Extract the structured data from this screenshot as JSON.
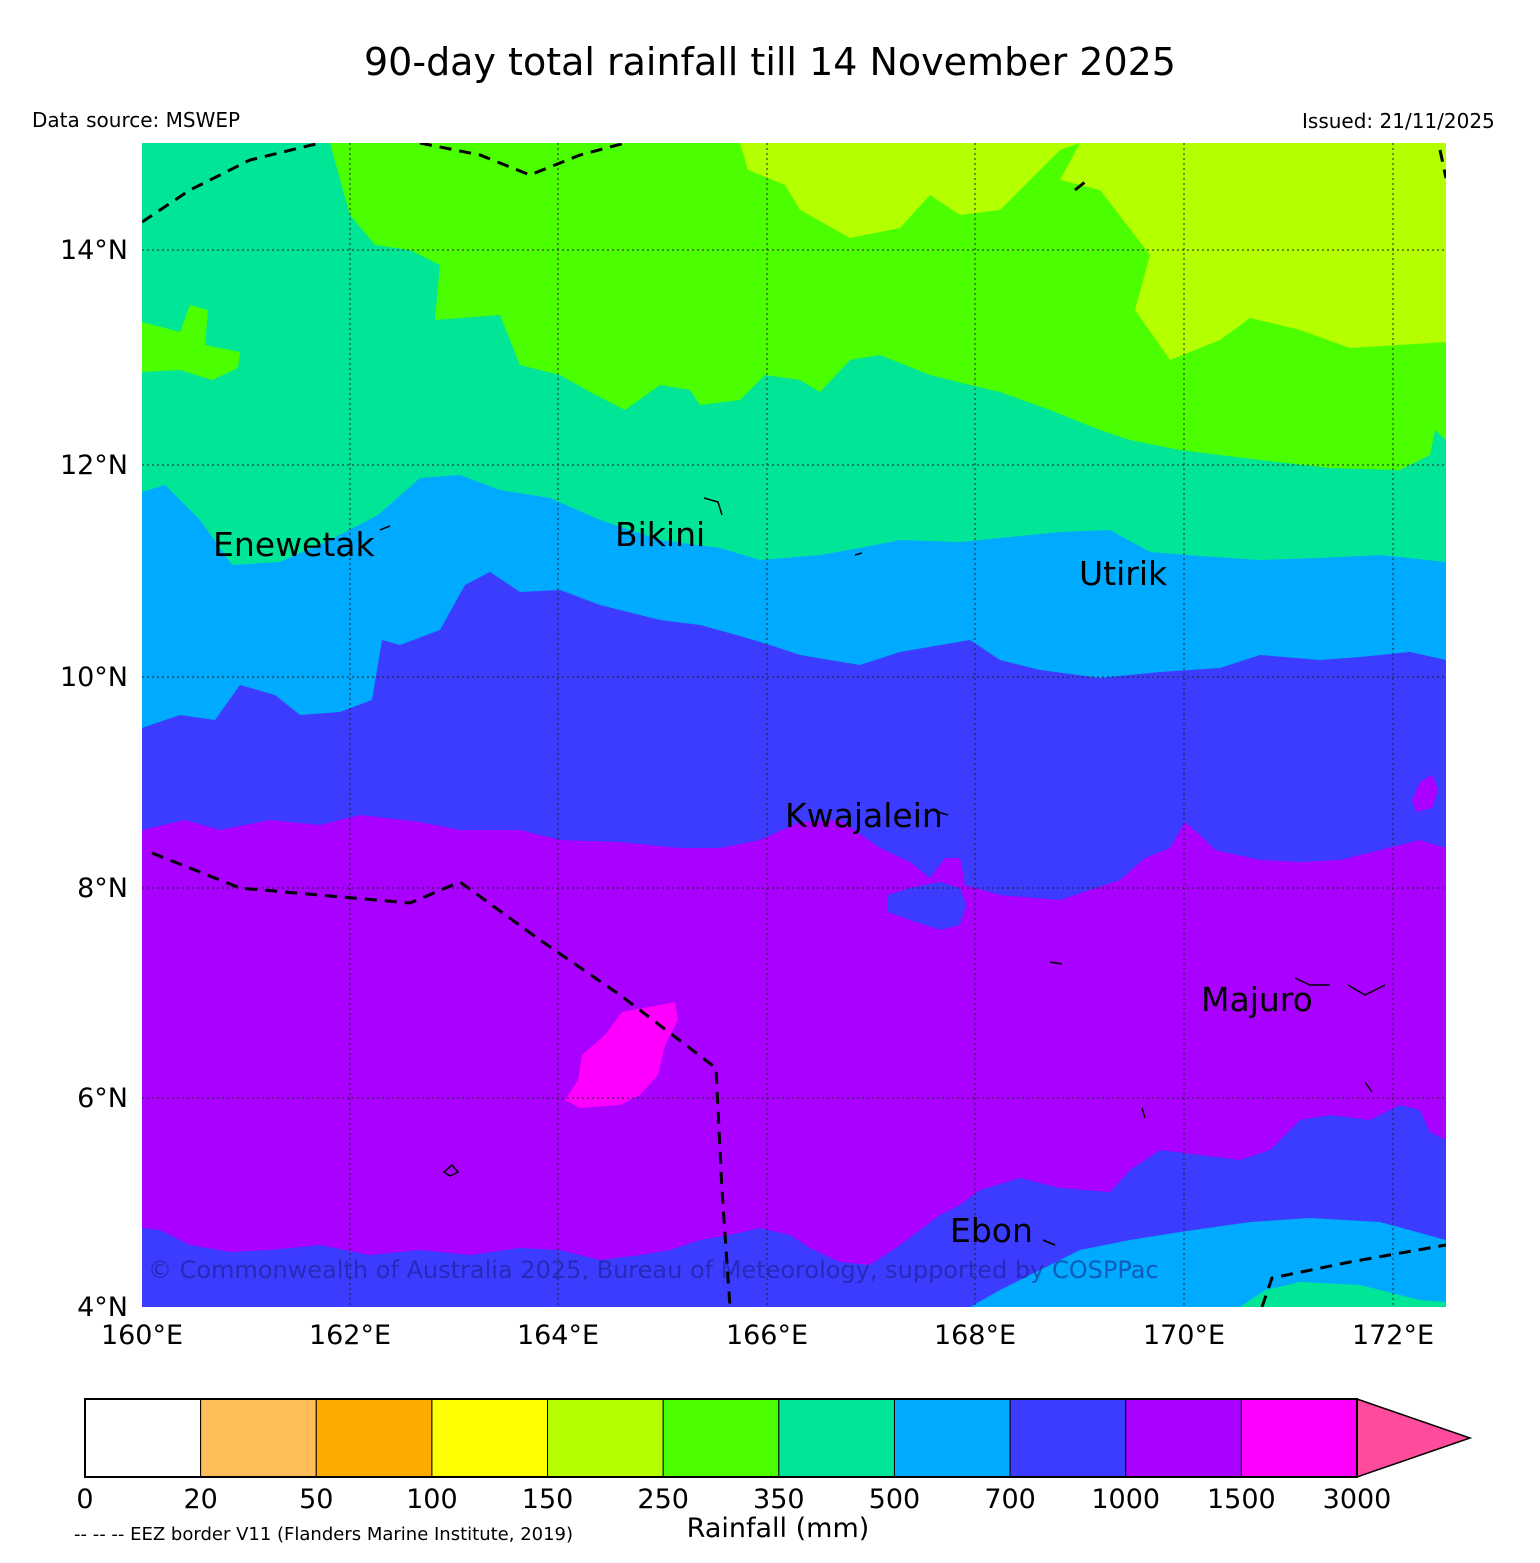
{
  "title": "90-day total rainfall till 14 November 2025",
  "data_source": "Data source: MSWEP",
  "issued": "Issued: 21/11/2025",
  "copyright": "© Commonwealth of Australia 2025, Bureau of Meteorology, supported by COSPPac",
  "map": {
    "lon_range": [
      160,
      172.5
    ],
    "lat_range": [
      4,
      15
    ],
    "lon_ticks": [
      {
        "value": 160,
        "label": "160°E"
      },
      {
        "value": 162,
        "label": "162°E"
      },
      {
        "value": 164,
        "label": "164°E"
      },
      {
        "value": 166,
        "label": "166°E"
      },
      {
        "value": 168,
        "label": "168°E"
      },
      {
        "value": 170,
        "label": "170°E"
      },
      {
        "value": 172,
        "label": "172°E"
      }
    ],
    "lat_ticks": [
      {
        "value": 4,
        "label": "4°N"
      },
      {
        "value": 6,
        "label": "6°N"
      },
      {
        "value": 8,
        "label": "8°N"
      },
      {
        "value": 10,
        "label": "10°N"
      },
      {
        "value": 12,
        "label": "12°N"
      },
      {
        "value": 14,
        "label": "14°N"
      }
    ],
    "places": [
      {
        "name": "Enewetak",
        "lon": 162.2,
        "lat": 11.35
      },
      {
        "name": "Bikini",
        "lon": 165.4,
        "lat": 11.55
      },
      {
        "name": "Utirik",
        "lon": 169.5,
        "lat": 11.2
      },
      {
        "name": "Kwajalein",
        "lon": 167.5,
        "lat": 8.7
      },
      {
        "name": "Majuro",
        "lon": 171.2,
        "lat": 7.1
      },
      {
        "name": "Ebon",
        "lon": 168.6,
        "lat": 4.6
      }
    ]
  },
  "legend": {
    "title": "Rainfall (mm)",
    "ticks": [
      "0",
      "20",
      "50",
      "100",
      "150",
      "250",
      "350",
      "500",
      "700",
      "1000",
      "1500",
      "3000"
    ],
    "colors": [
      "#ffffff",
      "#ffbe5a",
      "#ffaa00",
      "#ffff00",
      "#b4ff00",
      "#4bff00",
      "#00e696",
      "#00aaff",
      "#3c3cff",
      "#aa00ff",
      "#ff00ff"
    ],
    "extend_color": "#ff4b9b",
    "eez_note": "-- -- -- EEZ border V11 (Flanders Marine Institute, 2019)"
  }
}
